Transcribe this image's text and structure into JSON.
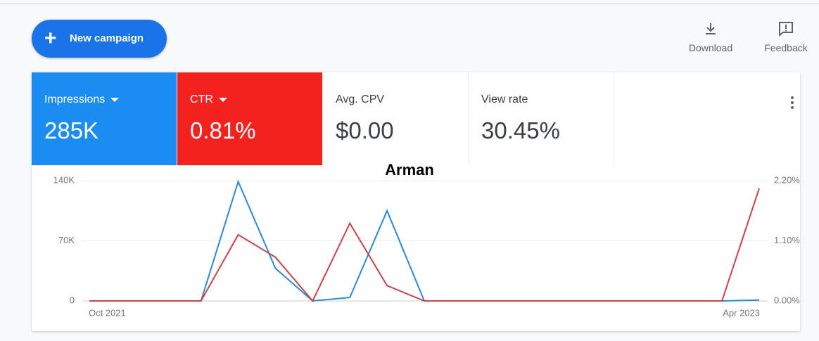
{
  "toolbar": {
    "new_campaign": "New campaign",
    "download": "Download",
    "feedback": "Feedback"
  },
  "metrics": [
    {
      "label": "Impressions",
      "value": "285K"
    },
    {
      "label": "CTR",
      "value": "0.81%"
    },
    {
      "label": "Avg. CPV",
      "value": "$0.00"
    },
    {
      "label": "View rate",
      "value": "30.45%"
    }
  ],
  "chart_data": {
    "type": "line",
    "title": "Arman",
    "categories": [
      "Oct 2021",
      null,
      null,
      null,
      null,
      null,
      null,
      null,
      null,
      null,
      null,
      null,
      null,
      null,
      null,
      null,
      null,
      null,
      "Apr 2023"
    ],
    "series": [
      {
        "color": "#2b8ad1",
        "values": [
          0,
          0,
          0,
          0,
          139000,
          38000,
          0,
          4000,
          105000,
          0,
          0,
          0,
          0,
          0,
          0,
          0,
          0,
          0,
          1000
        ]
      },
      {
        "color": "#c8434a",
        "axis": "y2",
        "values": [
          0,
          0,
          0,
          0,
          1.21,
          0.8,
          0,
          1.42,
          0.28,
          0,
          0,
          0,
          0,
          0,
          0,
          0,
          0,
          0,
          2.06
        ]
      }
    ],
    "ylim": [
      0,
      140000
    ],
    "yticks": [
      0,
      {
        "value": 70000,
        "label": "70K"
      },
      {
        "value": 140000,
        "label": "140K"
      }
    ],
    "y2lim": [
      0,
      2.2
    ],
    "y2ticks": [
      {
        "value": 0,
        "label": "0.00%"
      },
      {
        "value": 1.1,
        "label": "1.10%"
      },
      {
        "value": 2.2,
        "label": "2.20%"
      }
    ],
    "grid": true
  }
}
